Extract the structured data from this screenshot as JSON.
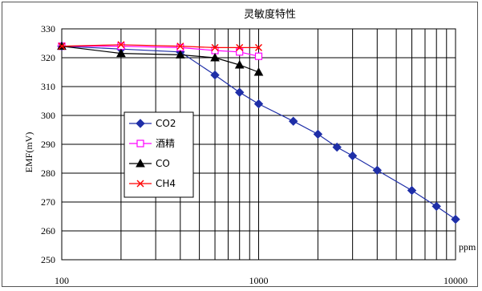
{
  "chart_data": {
    "type": "line",
    "title": "灵敏度特性",
    "xlabel": "ppm",
    "ylabel": "EMF(mV)",
    "x_scale": "log",
    "xlim": [
      100,
      10000
    ],
    "ylim": [
      250,
      330
    ],
    "x_ticks": [
      "100",
      "1000",
      "10000"
    ],
    "y_ticks": [
      "250",
      "260",
      "270",
      "280",
      "290",
      "300",
      "310",
      "320",
      "330"
    ],
    "grid": true,
    "legend_position": "left-middle",
    "series": [
      {
        "name": "CO2",
        "color": "#1f2fa8",
        "marker": "diamond",
        "points": [
          [
            100,
            324
          ],
          [
            200,
            323
          ],
          [
            400,
            322
          ],
          [
            600,
            314
          ],
          [
            800,
            308
          ],
          [
            1000,
            304
          ],
          [
            1500,
            298
          ],
          [
            2000,
            293.5
          ],
          [
            2500,
            289
          ],
          [
            3000,
            286
          ],
          [
            4000,
            281
          ],
          [
            6000,
            274
          ],
          [
            8000,
            268.5
          ],
          [
            10000,
            264
          ]
        ]
      },
      {
        "name": "酒精",
        "color": "#ff00ff",
        "marker": "square",
        "points": [
          [
            100,
            324
          ],
          [
            200,
            324
          ],
          [
            400,
            323.5
          ],
          [
            600,
            322.5
          ],
          [
            800,
            322
          ],
          [
            1000,
            320.5
          ]
        ]
      },
      {
        "name": "CO",
        "color": "#000000",
        "marker": "triangle",
        "points": [
          [
            100,
            324
          ],
          [
            200,
            321.5
          ],
          [
            400,
            321
          ],
          [
            600,
            320
          ],
          [
            800,
            317.5
          ],
          [
            1000,
            315
          ]
        ]
      },
      {
        "name": "CH4",
        "color": "#ff0000",
        "marker": "x",
        "points": [
          [
            100,
            324
          ],
          [
            200,
            324.5
          ],
          [
            400,
            324
          ],
          [
            600,
            323.5
          ],
          [
            800,
            323.5
          ],
          [
            1000,
            323.5
          ]
        ]
      }
    ]
  }
}
